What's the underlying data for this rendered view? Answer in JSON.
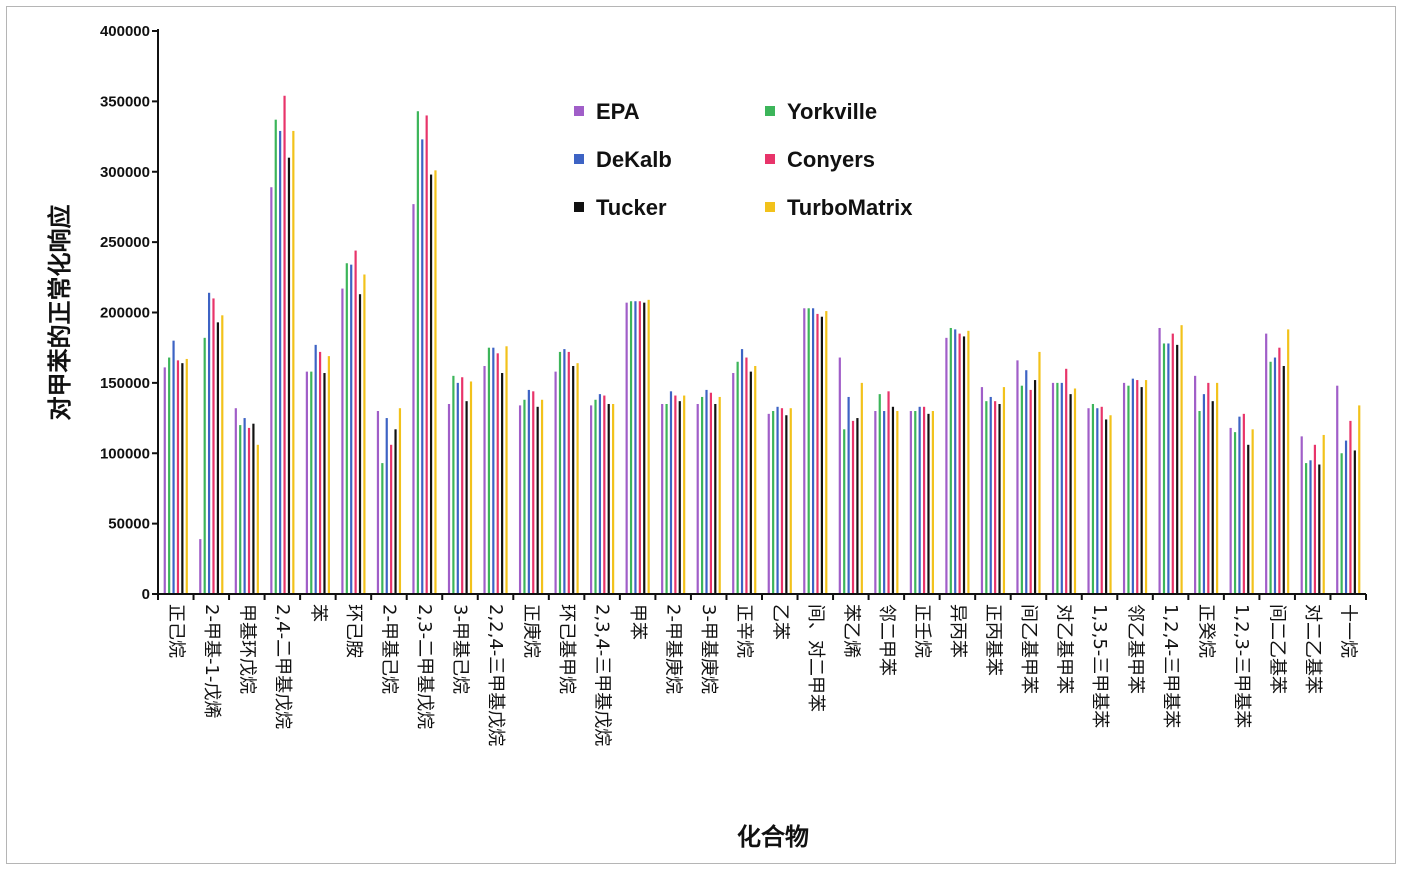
{
  "chart_data": {
    "type": "bar",
    "xlabel": "化合物",
    "ylabel": "对甲苯的正常化响应",
    "ylim": [
      0,
      400000
    ],
    "yticks": [
      "0",
      "50000",
      "100000",
      "150000",
      "200000",
      "250000",
      "300000",
      "350000",
      "400000"
    ],
    "legend_position": "top-center",
    "categories": [
      "正己烷",
      "2-甲基-1-戊烯",
      "甲基环戊烷",
      "2,4-二甲基戊烷",
      "苯",
      "环己胺",
      "2-甲基己烷",
      "2,3-二甲基戊烷",
      "3-甲基己烷",
      "2,2,4-三甲基戊烷",
      "正庚烷",
      "环己基甲烷",
      "2,3,4-三甲基戊烷",
      "甲苯",
      "2-甲基庚烷",
      "3-甲基庚烷",
      "正辛烷",
      "乙苯",
      "间、对二甲苯",
      "苯乙烯",
      "邻二甲苯",
      "正壬烷",
      "异丙苯",
      "正丙基苯",
      "间乙基甲苯",
      "对乙基甲苯",
      "1,3,5-三甲基苯",
      "邻乙基甲苯",
      "1,2,4-三甲基苯",
      "正癸烷",
      "1,2,3-三甲基苯",
      "间二乙基苯",
      "对二乙基苯",
      "十一烷"
    ],
    "series": [
      {
        "name": "EPA",
        "color": "#a05ec8",
        "values": [
          161000,
          39000,
          132000,
          289000,
          158000,
          217000,
          130000,
          277000,
          135000,
          162000,
          134000,
          158000,
          134000,
          207000,
          135000,
          135000,
          157000,
          128000,
          203000,
          168000,
          130000,
          130000,
          182000,
          147000,
          166000,
          150000,
          132000,
          150000,
          189000,
          155000,
          118000,
          185000,
          112000,
          148000
        ]
      },
      {
        "name": "Yorkville",
        "color": "#3cb55a",
        "values": [
          168000,
          182000,
          120000,
          337000,
          158000,
          235000,
          93000,
          343000,
          155000,
          175000,
          138000,
          172000,
          138000,
          208000,
          135000,
          140000,
          165000,
          130000,
          203000,
          117000,
          142000,
          130000,
          189000,
          137000,
          148000,
          150000,
          135000,
          148000,
          178000,
          130000,
          115000,
          165000,
          93000,
          100000
        ]
      },
      {
        "name": "DeKalb",
        "color": "#3d63c4",
        "values": [
          180000,
          214000,
          125000,
          329000,
          177000,
          234000,
          125000,
          323000,
          150000,
          175000,
          145000,
          174000,
          142000,
          208000,
          144000,
          145000,
          174000,
          133000,
          203000,
          140000,
          130000,
          133000,
          188000,
          140000,
          159000,
          150000,
          132000,
          153000,
          178000,
          142000,
          126000,
          168000,
          95000,
          109000
        ]
      },
      {
        "name": "Conyers",
        "color": "#e8346a",
        "values": [
          166000,
          210000,
          118000,
          354000,
          172000,
          244000,
          106000,
          340000,
          154000,
          171000,
          144000,
          172000,
          141000,
          208000,
          141000,
          143000,
          168000,
          132000,
          199000,
          123000,
          144000,
          133000,
          185000,
          137000,
          145000,
          160000,
          133000,
          152000,
          185000,
          150000,
          128000,
          175000,
          106000,
          123000
        ]
      },
      {
        "name": "Tucker",
        "color": "#111111",
        "values": [
          164000,
          193000,
          121000,
          310000,
          157000,
          213000,
          117000,
          298000,
          137000,
          157000,
          133000,
          162000,
          135000,
          207000,
          137000,
          135000,
          158000,
          127000,
          197000,
          125000,
          133000,
          128000,
          183000,
          135000,
          152000,
          142000,
          124000,
          147000,
          177000,
          137000,
          106000,
          162000,
          92000,
          102000
        ]
      },
      {
        "name": "TurboMatrix",
        "color": "#f2c21b",
        "values": [
          167000,
          198000,
          106000,
          329000,
          169000,
          227000,
          132000,
          301000,
          151000,
          176000,
          138000,
          164000,
          135000,
          209000,
          141000,
          140000,
          162000,
          132000,
          201000,
          150000,
          130000,
          130000,
          187000,
          147000,
          172000,
          146000,
          127000,
          152000,
          191000,
          150000,
          117000,
          188000,
          113000,
          134000
        ]
      }
    ]
  }
}
